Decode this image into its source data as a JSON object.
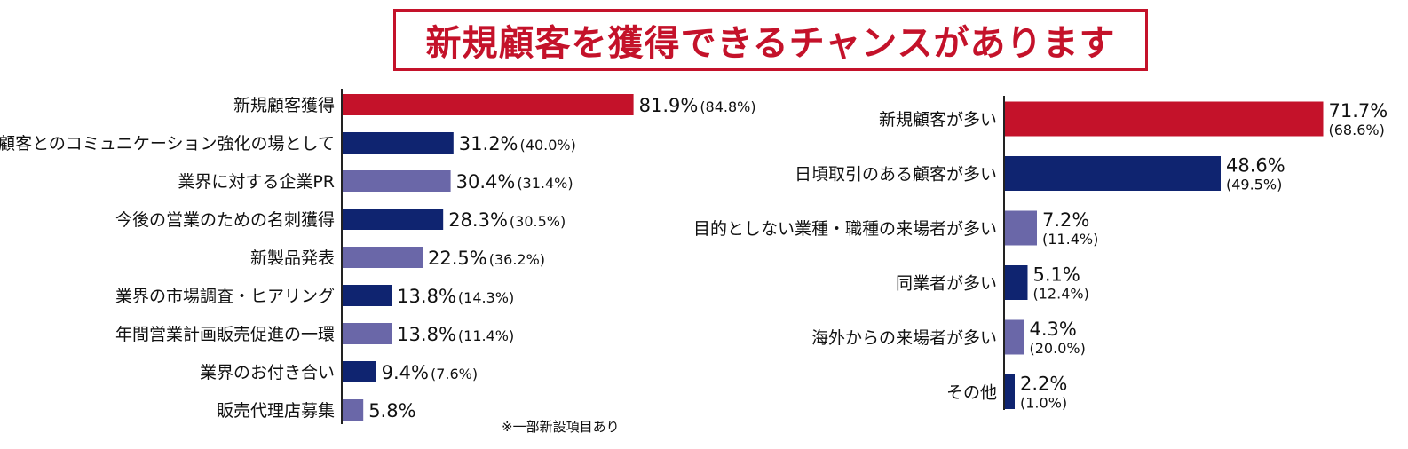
{
  "title": "新規顧客を獲得できるチャンスがあります",
  "note": "※一部新設項目あり",
  "colors": {
    "red": "#c4122a",
    "navy": "#0f2470",
    "lavender": "#6a67a8",
    "axis": "#222222"
  },
  "chart_data": [
    {
      "type": "bar",
      "orientation": "horizontal",
      "categories": [
        "新規顧客獲得",
        "既存顧客とのコミュニケーション強化の場として",
        "業界に対する企業PR",
        "今後の営業のための名刺獲得",
        "新製品発表",
        "業界の市場調査・ヒアリング",
        "年間営業計画販売促進の一環",
        "業界のお付き合い",
        "販売代理店募集"
      ],
      "values": [
        81.9,
        31.2,
        30.4,
        28.3,
        22.5,
        13.8,
        13.8,
        9.4,
        5.8
      ],
      "value_labels": [
        "81.9%",
        "31.2%",
        "30.4%",
        "28.3%",
        "22.5%",
        "13.8%",
        "13.8%",
        "9.4%",
        "5.8%"
      ],
      "previous_values": [
        84.8,
        40.0,
        31.4,
        30.5,
        36.2,
        14.3,
        11.4,
        7.6,
        null
      ],
      "previous_labels": [
        "(84.8%)",
        "(40.0%)",
        "(31.4%)",
        "(30.5%)",
        "(36.2%)",
        "(14.3%)",
        "(11.4%)",
        "(7.6%)",
        ""
      ],
      "bar_colors": [
        "red",
        "navy",
        "lavender",
        "navy",
        "lavender",
        "navy",
        "lavender",
        "navy",
        "lavender"
      ],
      "prev_placement": "inline",
      "xlim": [
        0,
        100
      ]
    },
    {
      "type": "bar",
      "orientation": "horizontal",
      "categories": [
        "新規顧客が多い",
        "日頃取引のある顧客が多い",
        "目的としない業種・職種の来場者が多い",
        "同業者が多い",
        "海外からの来場者が多い",
        "その他"
      ],
      "values": [
        71.7,
        48.6,
        7.2,
        5.1,
        4.3,
        2.2
      ],
      "value_labels": [
        "71.7%",
        "48.6%",
        "7.2%",
        "5.1%",
        "4.3%",
        "2.2%"
      ],
      "previous_values": [
        68.6,
        49.5,
        11.4,
        12.4,
        20.0,
        1.0
      ],
      "previous_labels": [
        "(68.6%)",
        "(49.5%)",
        "(11.4%)",
        "(12.4%)",
        "(20.0%)",
        "(1.0%)"
      ],
      "bar_colors": [
        "red",
        "navy",
        "lavender",
        "navy",
        "lavender",
        "navy"
      ],
      "prev_placement": "below",
      "xlim": [
        0,
        100
      ]
    }
  ]
}
